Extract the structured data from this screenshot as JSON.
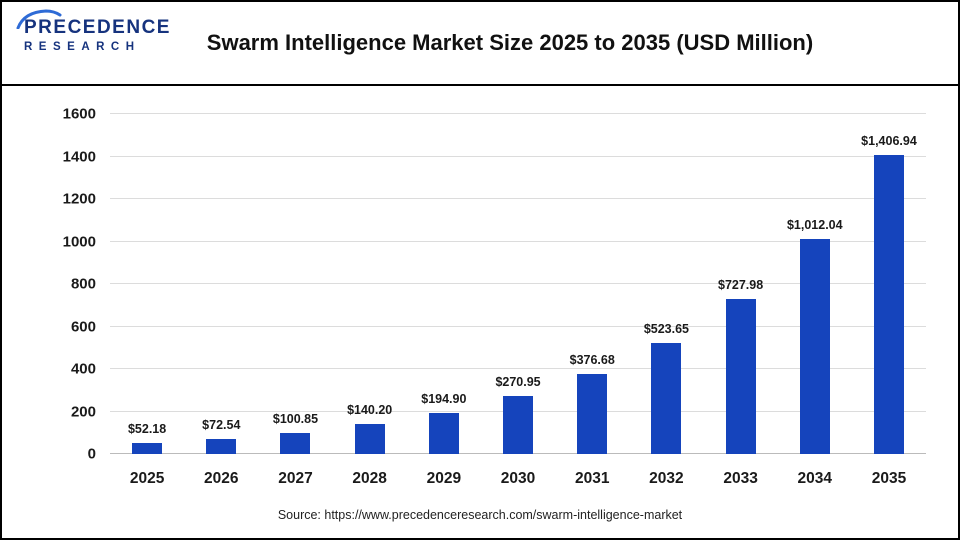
{
  "header": {
    "title": "Swarm Intelligence Market Size 2025 to 2035 (USD Million)",
    "logo": {
      "line1": "PRECEDENCE",
      "line2": "RESEARCH",
      "icon": "swoosh-arc-icon"
    }
  },
  "footer": {
    "source": "Source: https://www.precedenceresearch.com/swarm-intelligence-market"
  },
  "colors": {
    "bar": "#1544bc",
    "logo_blue": "#16337e",
    "swoosh_blue": "#2e6bd6",
    "grid": "#dcdcdc",
    "text": "#1a1a1a"
  },
  "chart_data": {
    "type": "bar",
    "title": "Swarm Intelligence Market Size 2025 to 2035 (USD Million)",
    "categories": [
      "2025",
      "2026",
      "2027",
      "2028",
      "2029",
      "2030",
      "2031",
      "2032",
      "2033",
      "2034",
      "2035"
    ],
    "values": [
      52.18,
      72.54,
      100.85,
      140.2,
      194.9,
      270.95,
      376.68,
      523.65,
      727.98,
      1012.04,
      1406.94
    ],
    "value_labels": [
      "$52.18",
      "$72.54",
      "$100.85",
      "$140.20",
      "$194.90",
      "$270.95",
      "$376.68",
      "$523.65",
      "$727.98",
      "$1,012.04",
      "$1,406.94"
    ],
    "xlabel": "",
    "ylabel": "",
    "ylim": [
      0,
      1600
    ],
    "ytick_step": 200,
    "yticks": [
      0,
      200,
      400,
      600,
      800,
      1000,
      1200,
      1400,
      1600
    ],
    "grid": true,
    "legend": false,
    "bar_color": "#1544bc"
  }
}
